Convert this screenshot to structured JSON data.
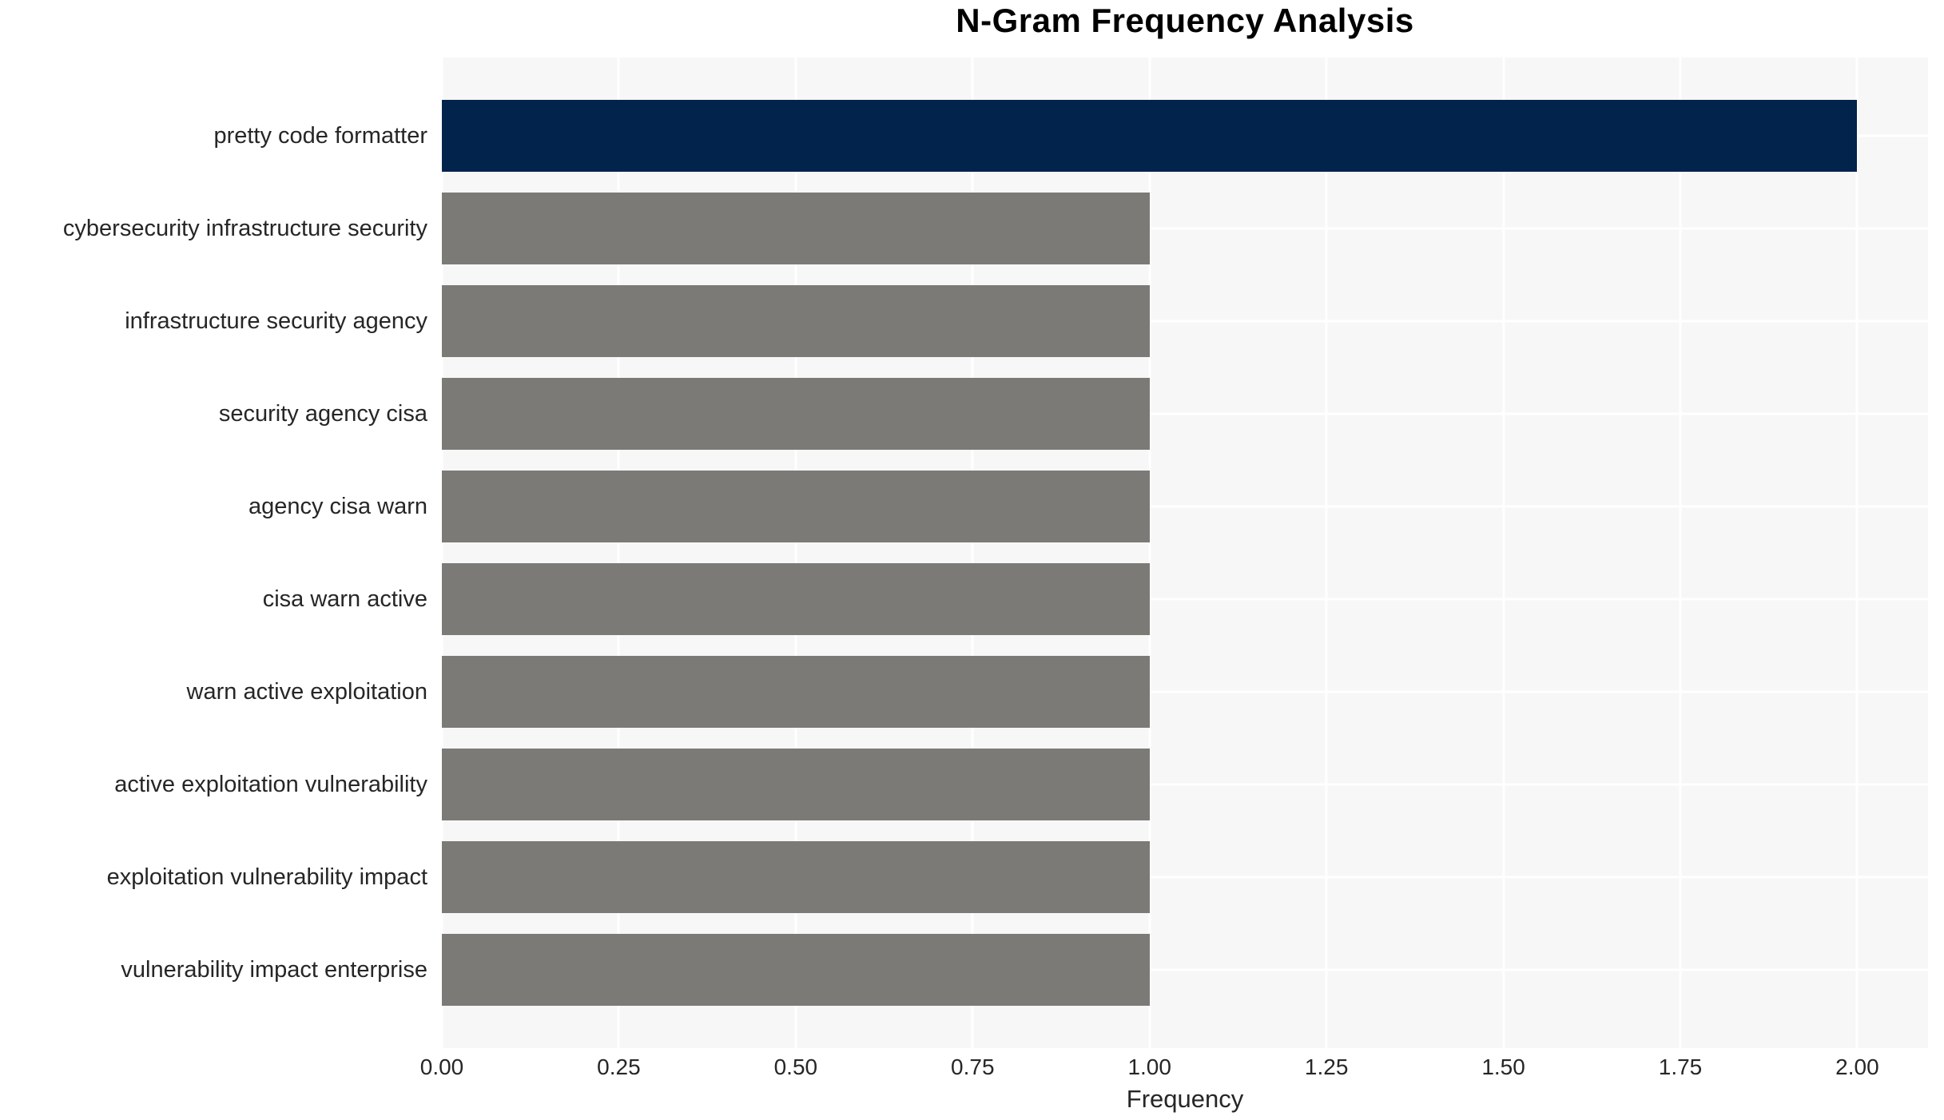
{
  "chart_data": {
    "type": "bar",
    "orientation": "horizontal",
    "title": "N-Gram Frequency Analysis",
    "xlabel": "Frequency",
    "ylabel": "",
    "categories": [
      "pretty code formatter",
      "cybersecurity infrastructure security",
      "infrastructure security agency",
      "security agency cisa",
      "agency cisa warn",
      "cisa warn active",
      "warn active exploitation",
      "active exploitation vulnerability",
      "exploitation vulnerability impact",
      "vulnerability impact enterprise"
    ],
    "values": [
      2,
      1,
      1,
      1,
      1,
      1,
      1,
      1,
      1,
      1
    ],
    "bar_colors": [
      "#02234c",
      "#7b7a76",
      "#7b7a76",
      "#7b7a76",
      "#7b7a76",
      "#7b7a76",
      "#7b7a76",
      "#7b7a76",
      "#7b7a76",
      "#7b7a76"
    ],
    "xlim": [
      0,
      2.1
    ],
    "xticks": [
      {
        "value": 0.0,
        "label": "0.00"
      },
      {
        "value": 0.25,
        "label": "0.25"
      },
      {
        "value": 0.5,
        "label": "0.50"
      },
      {
        "value": 0.75,
        "label": "0.75"
      },
      {
        "value": 1.0,
        "label": "1.00"
      },
      {
        "value": 1.25,
        "label": "1.25"
      },
      {
        "value": 1.5,
        "label": "1.50"
      },
      {
        "value": 1.75,
        "label": "1.75"
      },
      {
        "value": 2.0,
        "label": "2.00"
      }
    ],
    "grid": true,
    "legend": false,
    "colors": {
      "highlight_bar": "#02234c",
      "default_bar": "#7b7a76",
      "plot_background": "#f7f7f7",
      "gridline": "#ffffff",
      "tick_text": "#262626",
      "title_text": "#000000",
      "page_background": "#ffffff"
    }
  }
}
